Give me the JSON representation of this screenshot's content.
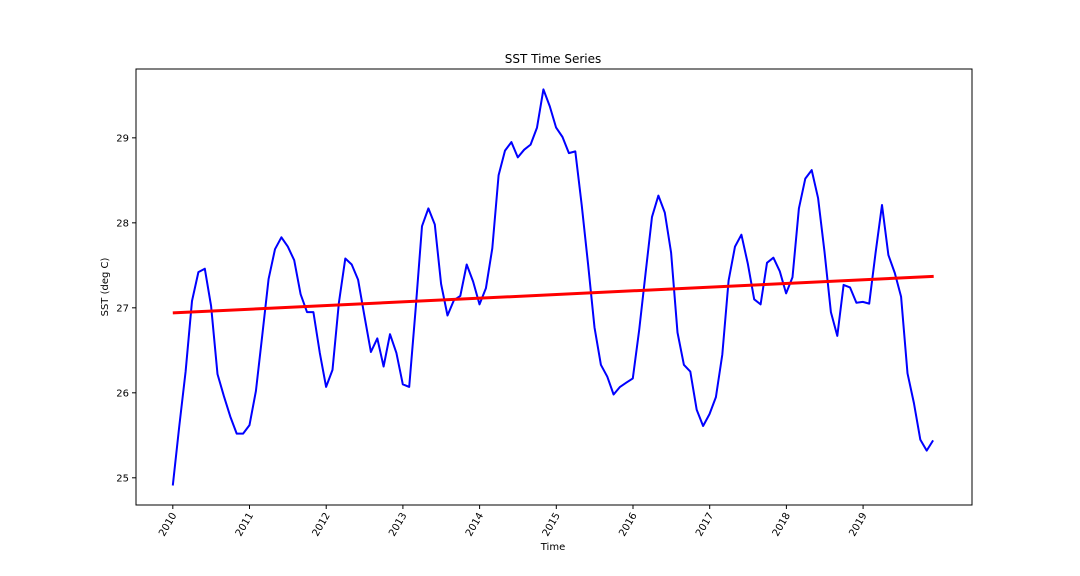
{
  "chart_data": {
    "type": "line",
    "title": "SST Time Series",
    "xlabel": "Time",
    "ylabel": "SST (deg C)",
    "xlim": [
      2009.52,
      2020.42
    ],
    "ylim": [
      24.68,
      29.81
    ],
    "x_ticks": [
      "2010",
      "2011",
      "2012",
      "2013",
      "2014",
      "2015",
      "2016",
      "2017",
      "2018",
      "2019"
    ],
    "y_ticks": [
      "25",
      "26",
      "27",
      "28",
      "29"
    ],
    "grid": false,
    "series": [
      {
        "style": "line",
        "color": "#0000ff",
        "x_start": 2010.0,
        "x_step": 0.0833,
        "values": [
          24.91,
          25.6,
          26.25,
          27.08,
          27.42,
          27.46,
          27.02,
          26.22,
          25.96,
          25.72,
          25.52,
          25.52,
          25.62,
          26.02,
          26.68,
          27.34,
          27.69,
          27.83,
          27.72,
          27.56,
          27.16,
          26.95,
          26.95,
          26.47,
          26.07,
          26.27,
          27.06,
          27.58,
          27.51,
          27.33,
          26.9,
          26.48,
          26.64,
          26.31,
          26.69,
          26.47,
          26.1,
          26.07,
          26.98,
          27.96,
          28.17,
          27.98,
          27.28,
          26.91,
          27.09,
          27.14,
          27.51,
          27.31,
          27.04,
          27.23,
          27.7,
          28.56,
          28.85,
          28.95,
          28.77,
          28.86,
          28.92,
          29.12,
          29.57,
          29.37,
          29.12,
          29.01,
          28.82,
          28.84,
          28.21,
          27.51,
          26.77,
          26.33,
          26.19,
          25.98,
          26.07,
          26.12,
          26.17,
          26.74,
          27.41,
          28.07,
          28.32,
          28.12,
          27.65,
          26.71,
          26.33,
          26.25,
          25.8,
          25.61,
          25.75,
          25.95,
          26.45,
          27.32,
          27.72,
          27.86,
          27.52,
          27.1,
          27.04,
          27.53,
          27.59,
          27.43,
          27.17,
          27.36,
          28.17,
          28.52,
          28.62,
          28.29,
          27.66,
          26.95,
          26.67,
          27.27,
          27.24,
          27.06,
          27.07,
          27.05,
          27.65,
          28.21,
          27.62,
          27.41,
          27.13,
          26.23,
          25.88,
          25.45,
          25.32,
          25.44
        ]
      },
      {
        "style": "trend",
        "color": "#ff0000",
        "x": [
          2010.0,
          2019.92
        ],
        "values": [
          26.94,
          27.37
        ]
      }
    ]
  }
}
